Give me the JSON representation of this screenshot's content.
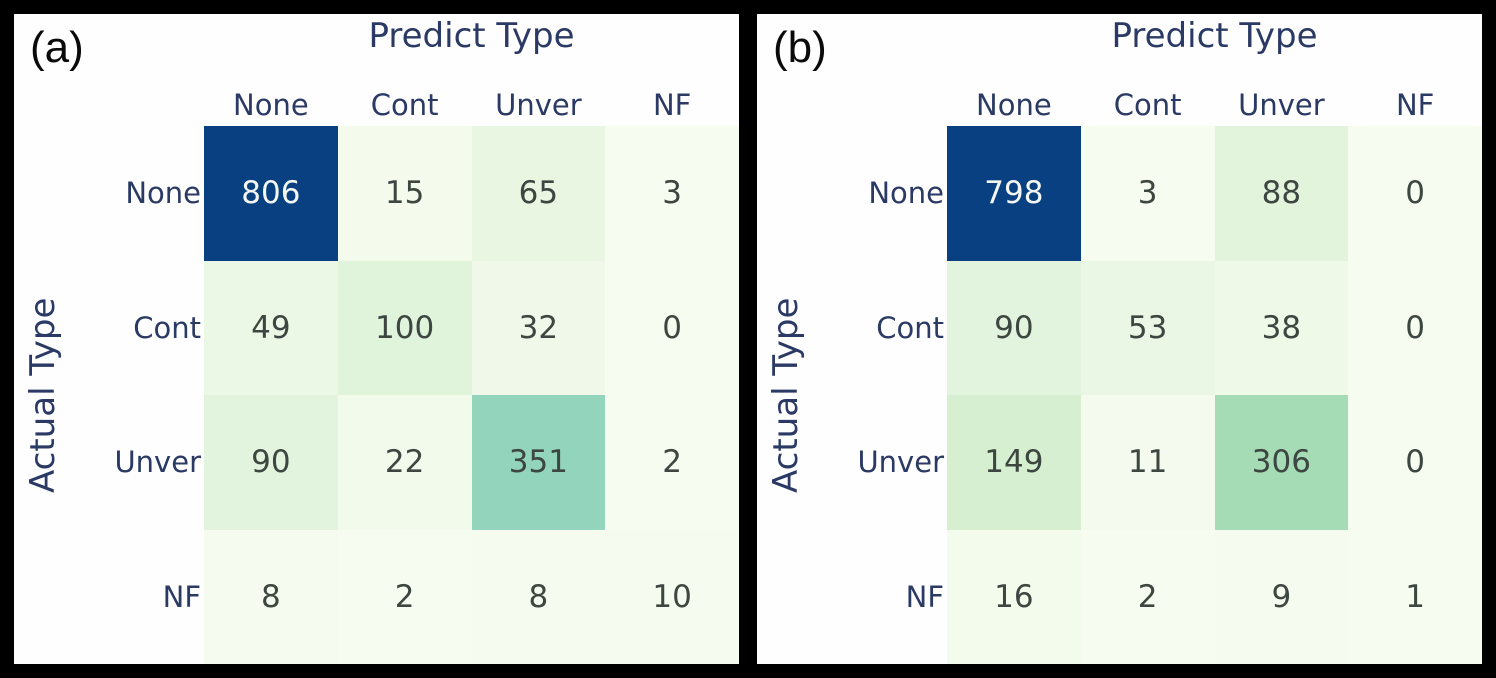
{
  "style": {
    "frame_bg": "#000000",
    "panel_bg": "#fefefe",
    "label_color": "#2b3a64",
    "tag_color": "#0a0a0a",
    "cell_text_dark": "#3d4641",
    "cell_text_light": "#f4f7f1",
    "light_text_threshold": 0.6,
    "colorscale_name": "GnBu",
    "colorscale": [
      [
        0.0,
        "#f7fcf0"
      ],
      [
        0.125,
        "#e0f3db"
      ],
      [
        0.25,
        "#ccebc5"
      ],
      [
        0.375,
        "#a8ddb5"
      ],
      [
        0.5,
        "#7bccc4"
      ],
      [
        0.625,
        "#4eb3d3"
      ],
      [
        0.75,
        "#2b8cbe"
      ],
      [
        0.875,
        "#0868ac"
      ],
      [
        1.0,
        "#084081"
      ]
    ]
  },
  "chart_data": [
    {
      "type": "heatmap",
      "panel_label": "(a)",
      "title": "Predict Type",
      "xlabel": "Predict Type",
      "ylabel": "Actual Type",
      "x_categories": [
        "None",
        "Cont",
        "Unver",
        "NF"
      ],
      "y_categories": [
        "None",
        "Cont",
        "Unver",
        "NF"
      ],
      "rows": [
        [
          806,
          15,
          65,
          3
        ],
        [
          49,
          100,
          32,
          0
        ],
        [
          90,
          22,
          351,
          2
        ],
        [
          8,
          2,
          8,
          10
        ]
      ],
      "vmin": 0,
      "vmax": 806,
      "legend": "none",
      "grid": "off"
    },
    {
      "type": "heatmap",
      "panel_label": "(b)",
      "title": "Predict Type",
      "xlabel": "Predict Type",
      "ylabel": "Actual Type",
      "x_categories": [
        "None",
        "Cont",
        "Unver",
        "NF"
      ],
      "y_categories": [
        "None",
        "Cont",
        "Unver",
        "NF"
      ],
      "rows": [
        [
          798,
          3,
          88,
          0
        ],
        [
          90,
          53,
          38,
          0
        ],
        [
          149,
          11,
          306,
          0
        ],
        [
          16,
          2,
          9,
          1
        ]
      ],
      "vmin": 0,
      "vmax": 798,
      "legend": "none",
      "grid": "off"
    }
  ]
}
